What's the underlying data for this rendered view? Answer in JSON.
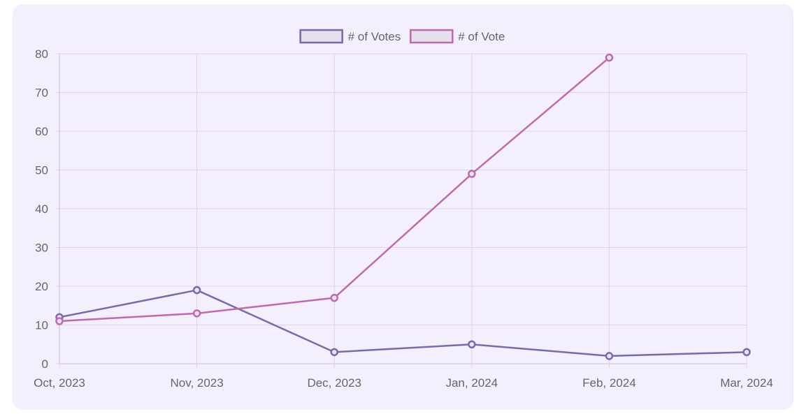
{
  "chart_data": {
    "type": "line",
    "categories": [
      "Oct, 2023",
      "Nov, 2023",
      "Dec, 2023",
      "Jan, 2024",
      "Feb, 2024",
      "Mar, 2024"
    ],
    "ylim": [
      0,
      80
    ],
    "yticks": [
      0,
      10,
      20,
      30,
      40,
      50,
      60,
      70,
      80
    ],
    "grid": true,
    "legend_position": "top-center",
    "series": [
      {
        "name": "# of Votes",
        "color": "#7b6aa8",
        "values": [
          12,
          19,
          3,
          5,
          2,
          3
        ]
      },
      {
        "name": "# of Vote",
        "color": "#c06aad",
        "values": [
          11,
          13,
          17,
          49,
          79,
          null
        ]
      }
    ]
  }
}
